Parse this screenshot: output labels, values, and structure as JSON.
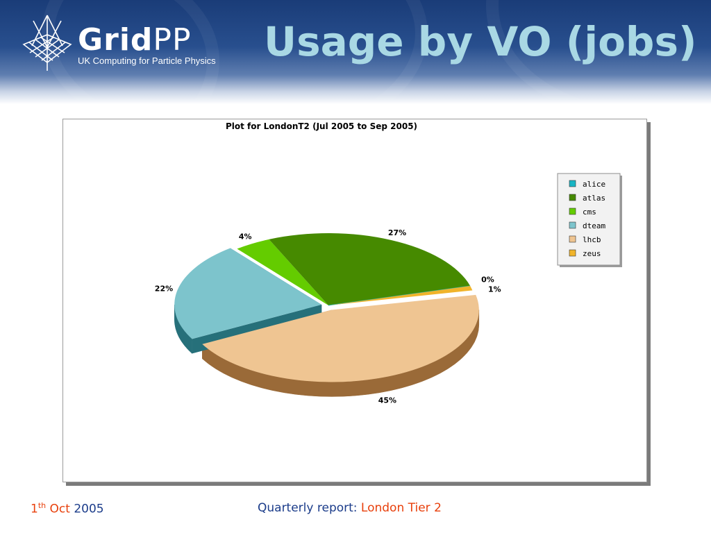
{
  "slide": {
    "title": "Usage by VO (jobs)"
  },
  "logo": {
    "name_bold": "Grid",
    "name_light": "PP",
    "tagline": "UK Computing for Particle Physics"
  },
  "footer": {
    "day": "1",
    "day_suffix": "th",
    "month": "Oct",
    "year": "2005",
    "report_label": "Quarterly report:",
    "report_site": "London Tier 2"
  },
  "colors": {
    "title": "#a9d8e4",
    "footer_blue": "#1b3c8a",
    "footer_orange": "#e8400c"
  },
  "chart_data": {
    "type": "pie",
    "title": "Plot for LondonT2 (Jul 2005 to Sep 2005)",
    "legend_position": "top-right",
    "slices": [
      {
        "name": "lhcb",
        "value": 45,
        "label": "45%",
        "color": "#efc592",
        "side": "#9a6a38"
      },
      {
        "name": "dteam",
        "value": 22,
        "label": "22%",
        "color": "#7dc4cc",
        "side": "#26707a"
      },
      {
        "name": "cms",
        "value": 4,
        "label": "4%",
        "color": "#64cc00",
        "side": "#3f8a00"
      },
      {
        "name": "atlas",
        "value": 27,
        "label": "27%",
        "color": "#468a00",
        "side": "#2a5a00"
      },
      {
        "name": "alice",
        "value": 0,
        "label": "0%",
        "color": "#19b5c4",
        "side": "#0e7580"
      },
      {
        "name": "zeus",
        "value": 1,
        "label": "1%",
        "color": "#f0b42a",
        "side": "#a06a00"
      }
    ],
    "legend": [
      "alice",
      "atlas",
      "cms",
      "dteam",
      "lhcb",
      "zeus"
    ]
  }
}
